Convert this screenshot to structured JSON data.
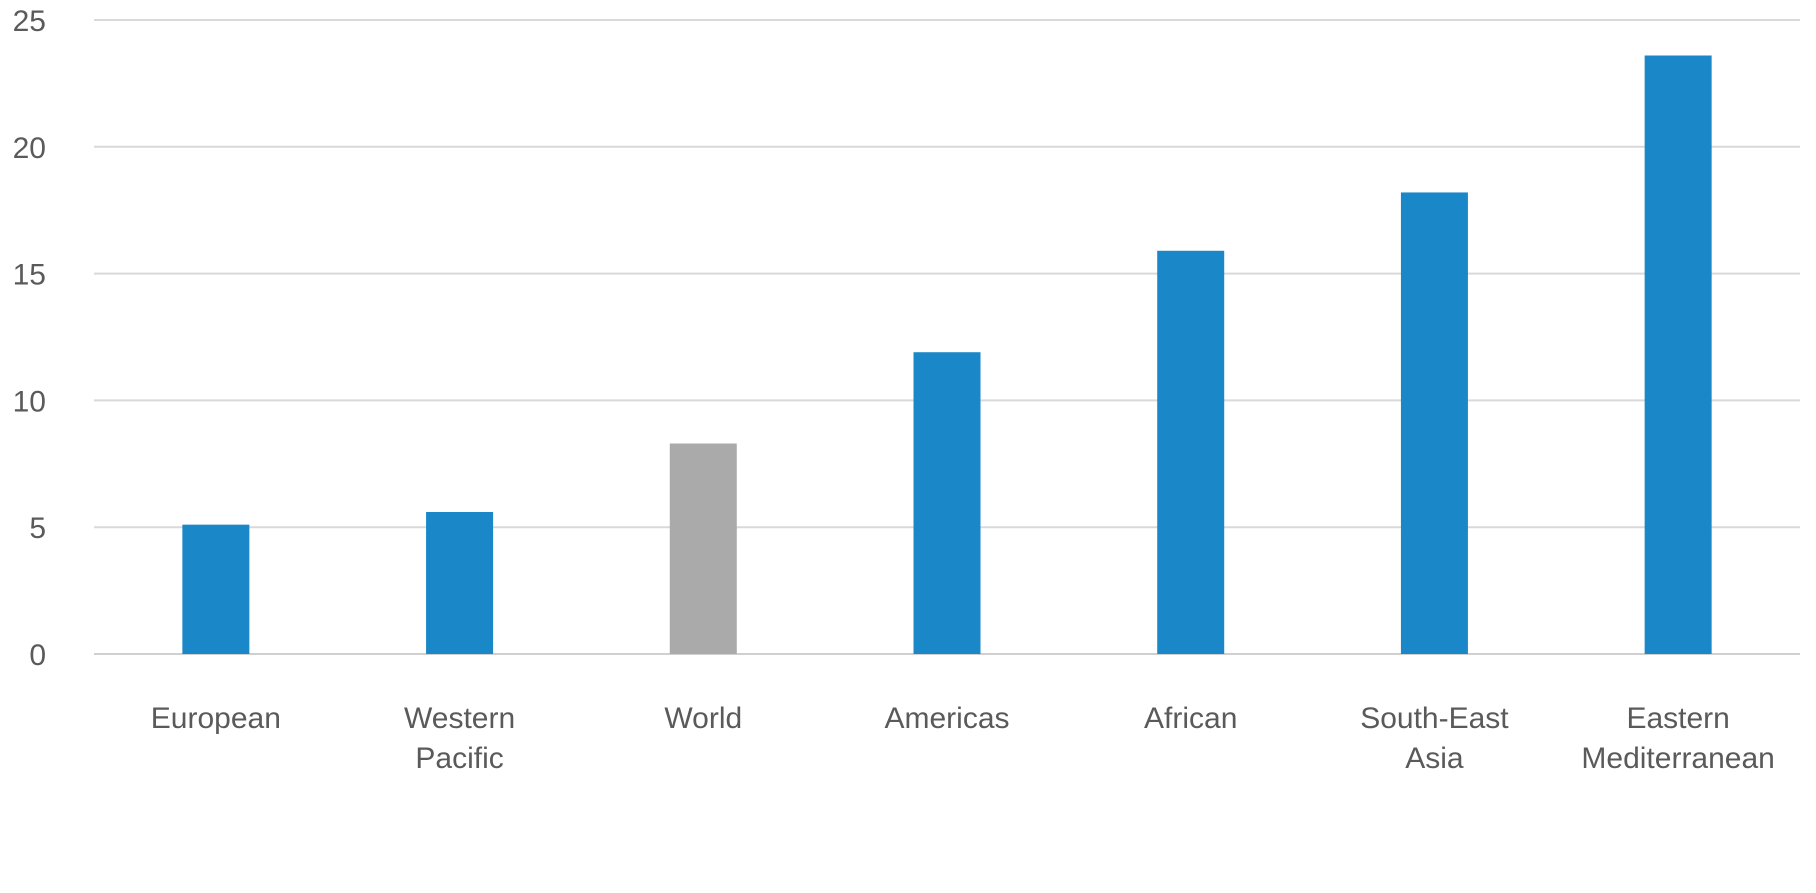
{
  "chart_data": {
    "type": "bar",
    "title": "",
    "xlabel": "",
    "ylabel": "",
    "categories": [
      [
        "European"
      ],
      [
        "Western",
        "Pacific"
      ],
      [
        "World"
      ],
      [
        "Americas"
      ],
      [
        "African"
      ],
      [
        "South-East",
        "Asia"
      ],
      [
        "Eastern",
        "Mediterranean"
      ]
    ],
    "values": [
      5.1,
      5.6,
      8.3,
      11.9,
      15.9,
      18.2,
      23.6
    ],
    "bar_colors": [
      "#1a87c8",
      "#1a87c8",
      "#aaaaaa",
      "#1a87c8",
      "#1a87c8",
      "#1a87c8",
      "#1a87c8"
    ],
    "ylim": [
      0,
      25
    ],
    "yticks": [
      0,
      5,
      10,
      15,
      20,
      25
    ],
    "grid": true,
    "legend": "none"
  }
}
